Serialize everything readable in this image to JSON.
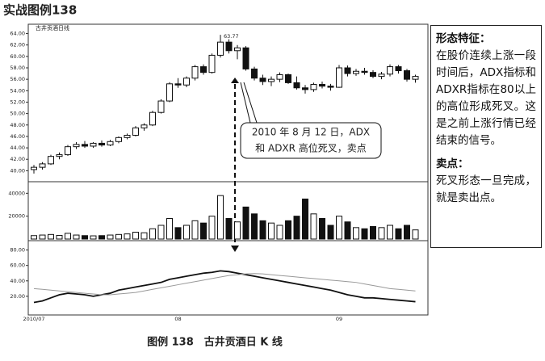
{
  "page_title": "实战图例138",
  "caption": "图例 138　古井贡酒日 K 线",
  "callout": {
    "lines": [
      "2010 年 8 月 12 日，ADX",
      "和 ADXR 高位死叉，卖点"
    ]
  },
  "side_note": {
    "heading1": "形态特征：",
    "text1": "在股价连续上涨一段时间后，ADX指标和ADXR指标在80以上的高位形成死叉。这是之前上涨行情已经结束的信号。",
    "heading2": "卖点：",
    "text2": "死叉形态一旦完成，就是卖出点。"
  },
  "chart_data": {
    "type": "candlestick",
    "title": "古井贡酒日线",
    "high_label": {
      "index": 22,
      "label": "63.77"
    },
    "categories": [
      "2010/07",
      null,
      null,
      null,
      null,
      null,
      null,
      null,
      null,
      null,
      null,
      null,
      null,
      null,
      null,
      null,
      null,
      "08",
      null,
      null,
      null,
      null,
      null,
      null,
      null,
      null,
      null,
      null,
      null,
      null,
      null,
      null,
      null,
      null,
      null,
      null,
      "09",
      null,
      null,
      null,
      null,
      null,
      null,
      null,
      null,
      null
    ],
    "open": [
      40.2,
      40.6,
      41.2,
      42.5,
      42.8,
      44.2,
      44.6,
      44.3,
      44.8,
      44.5,
      45.1,
      45.8,
      46.2,
      47.5,
      48,
      50.2,
      52.2,
      55.2,
      55,
      56.2,
      58.2,
      57.2,
      60.2,
      62.5,
      61,
      61.5,
      57.8,
      56.2,
      55.6,
      56,
      56.8,
      55.4,
      54.5,
      54.2,
      55.1,
      54.8,
      54.6,
      58,
      57,
      57.4,
      57.2,
      56.5,
      56.9,
      58.2,
      57.5,
      56
    ],
    "high": [
      41,
      41.5,
      42.8,
      43.2,
      44.5,
      45,
      45.2,
      45,
      45.3,
      45.4,
      46,
      46.5,
      47.8,
      48.3,
      50.5,
      52.5,
      55.5,
      56.2,
      56.5,
      58.5,
      58.6,
      60.5,
      63.77,
      63,
      62,
      61.8,
      58.2,
      56.8,
      56.5,
      57.2,
      57,
      56.5,
      55,
      55.4,
      55.6,
      55.2,
      58.5,
      58.4,
      57.8,
      58,
      57.6,
      57.3,
      58.6,
      58.5,
      57.8,
      56.8
    ],
    "low": [
      39.5,
      40.2,
      41,
      42,
      42.6,
      43.8,
      44,
      44,
      44.2,
      44.3,
      44.8,
      45.5,
      46,
      47,
      47.8,
      50,
      52,
      54.5,
      54.6,
      55.8,
      56.8,
      57,
      59.8,
      60.5,
      59.5,
      57.5,
      55.8,
      55,
      54.8,
      55.5,
      55.2,
      54.2,
      53.5,
      53.8,
      54.4,
      54,
      54.5,
      56.5,
      56.6,
      56.8,
      56.2,
      56,
      56.5,
      57,
      55.6,
      55.4
    ],
    "close": [
      40.6,
      41.2,
      42.5,
      42.8,
      44.2,
      44.6,
      44.3,
      44.8,
      44.5,
      45.1,
      45.8,
      46.2,
      47.5,
      48,
      50.2,
      52.2,
      55.2,
      55,
      56.2,
      58.2,
      57.2,
      60.2,
      62.5,
      61,
      61.5,
      57.8,
      56.2,
      55.6,
      56,
      56.8,
      55.4,
      54.5,
      54.2,
      55.1,
      54.8,
      54.6,
      58,
      57,
      57.4,
      57.2,
      56.5,
      56.9,
      58.2,
      57.5,
      56,
      56.5
    ],
    "ylim": [
      38.5,
      64.5
    ],
    "yticks": [
      {
        "value": 40,
        "label": "40.00"
      },
      {
        "value": 42,
        "label": "42.00"
      },
      {
        "value": 44,
        "label": "44.00"
      },
      {
        "value": 46,
        "label": "46.00"
      },
      {
        "value": 48,
        "label": "48.00"
      },
      {
        "value": 50,
        "label": "50.00"
      },
      {
        "value": 52,
        "label": "52.00"
      },
      {
        "value": 54,
        "label": "54.00"
      },
      {
        "value": 56,
        "label": "56.00"
      },
      {
        "value": 58,
        "label": "58.00"
      },
      {
        "value": 60,
        "label": "60.00"
      },
      {
        "value": 62,
        "label": "62.00"
      },
      {
        "value": 64,
        "label": "64.00"
      }
    ],
    "volume": {
      "values": [
        3000,
        3500,
        4000,
        3200,
        5000,
        3500,
        3000,
        2800,
        3000,
        3500,
        4000,
        4500,
        6000,
        5500,
        9000,
        12000,
        18000,
        10000,
        12000,
        16000,
        14000,
        20000,
        38000,
        18000,
        15000,
        28000,
        22000,
        16000,
        14000,
        12000,
        16000,
        20000,
        35000,
        22000,
        18000,
        12000,
        20000,
        15000,
        10000,
        9000,
        11000,
        10000,
        12000,
        9000,
        12000,
        8000
      ],
      "ylim": [
        0,
        48000
      ],
      "yticks": [
        20000,
        40000
      ]
    },
    "indicator": {
      "series": [
        {
          "color": "#111111",
          "values": [
            12,
            14,
            18,
            22,
            24,
            23,
            22,
            20,
            22,
            24,
            28,
            30,
            32,
            34,
            36,
            38,
            42,
            44,
            46,
            48,
            50,
            51,
            53,
            52,
            50,
            48,
            46,
            44,
            42,
            40,
            38,
            36,
            34,
            32,
            30,
            28,
            25,
            22,
            20,
            18,
            18,
            17,
            16,
            15,
            14,
            13
          ]
        },
        {
          "color": "#999999",
          "values": [
            30,
            29,
            28,
            27,
            26,
            25,
            24,
            23,
            22,
            22,
            23,
            24,
            25,
            27,
            29,
            31,
            33,
            35,
            37,
            39,
            41,
            43,
            45,
            47,
            48,
            49,
            49.5,
            49,
            48,
            47,
            46,
            45,
            44,
            43,
            42,
            41,
            40,
            39,
            38,
            36,
            34,
            32,
            30,
            29,
            28,
            27
          ]
        }
      ],
      "ylim": [
        0,
        90
      ],
      "yticks": [
        {
          "value": 20,
          "label": "20.00"
        },
        {
          "value": 40,
          "label": "40.00"
        },
        {
          "value": 60,
          "label": "60.00"
        },
        {
          "value": 80,
          "label": "80.00"
        }
      ]
    }
  }
}
